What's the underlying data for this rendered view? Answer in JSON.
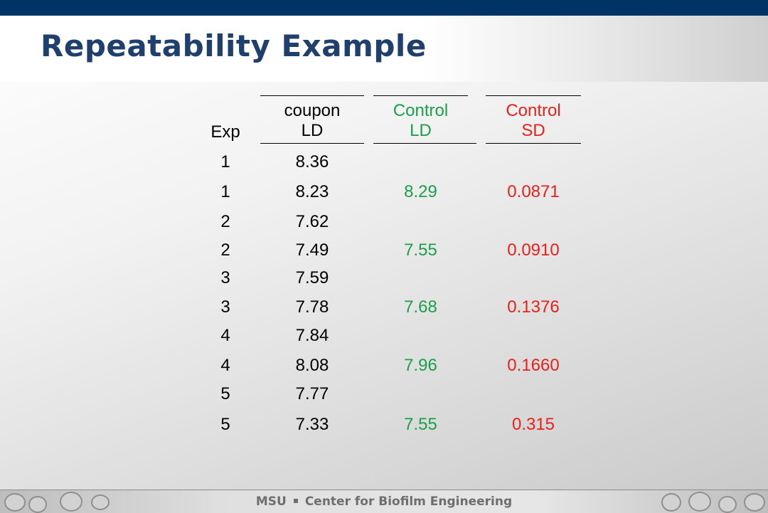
{
  "title": "Repeatability Example",
  "table": {
    "headers": [
      {
        "line1": "",
        "line2": "Exp"
      },
      {
        "line1": "coupon",
        "line2": "LD"
      },
      {
        "line1": "Control",
        "line2": "LD"
      },
      {
        "line1": "Control",
        "line2": "SD"
      }
    ],
    "rows": [
      {
        "exp": "1",
        "coupon_ld": "8.36",
        "control_ld": "",
        "control_sd": ""
      },
      {
        "exp": "1",
        "coupon_ld": "8.23",
        "control_ld": "8.29",
        "control_sd": "0.0871"
      },
      {
        "exp": "2",
        "coupon_ld": "7.62",
        "control_ld": "",
        "control_sd": ""
      },
      {
        "exp": "2",
        "coupon_ld": "7.49",
        "control_ld": "7.55",
        "control_sd": "0.0910"
      },
      {
        "exp": "3",
        "coupon_ld": "7.59",
        "control_ld": "",
        "control_sd": ""
      },
      {
        "exp": "3",
        "coupon_ld": "7.78",
        "control_ld": "7.68",
        "control_sd": "0.1376"
      },
      {
        "exp": "4",
        "coupon_ld": "7.84",
        "control_ld": "",
        "control_sd": ""
      },
      {
        "exp": "4",
        "coupon_ld": "8.08",
        "control_ld": "7.96",
        "control_sd": "0.1660"
      },
      {
        "exp": "5",
        "coupon_ld": "7.77",
        "control_ld": "",
        "control_sd": ""
      },
      {
        "exp": "5",
        "coupon_ld": "7.33",
        "control_ld": "7.55",
        "control_sd": "0.315"
      }
    ]
  },
  "colors": {
    "title": "#1f3f6e",
    "topbar": "#003366",
    "control_ld": "#1aa04a",
    "control_sd": "#e8201a",
    "text": "#000000"
  },
  "footer": {
    "org": "MSU",
    "center": "Center for Biofilm Engineering"
  }
}
